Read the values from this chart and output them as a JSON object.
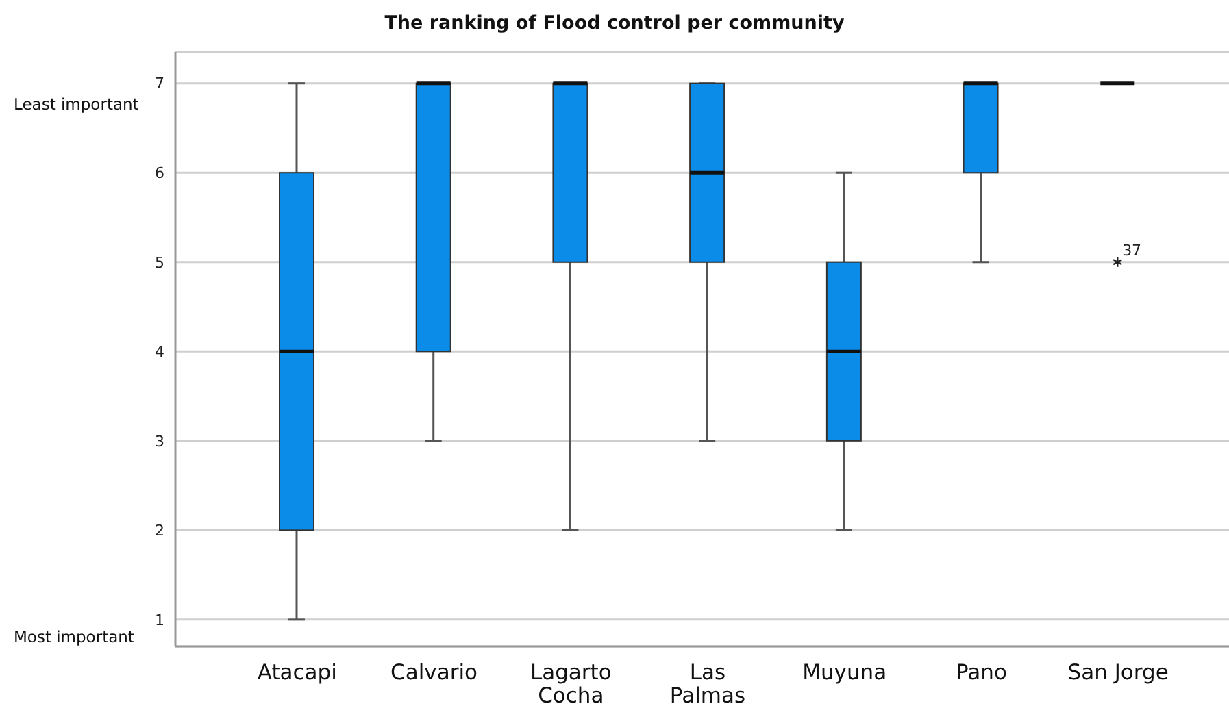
{
  "chart_data": {
    "type": "box",
    "title": "The ranking of Flood control per community",
    "categories": [
      "Atacapi",
      "Calvario",
      "Lagarto Cocha",
      "Las Palmas",
      "Muyuna",
      "Pano",
      "San Jorge"
    ],
    "boxes": [
      {
        "low": 1,
        "q1": 2,
        "median": 4,
        "q3": 6,
        "high": 7
      },
      {
        "low": 3,
        "q1": 4,
        "median": 7,
        "q3": 7,
        "high": 7
      },
      {
        "low": 2,
        "q1": 5,
        "median": 7,
        "q3": 7,
        "high": 7
      },
      {
        "low": 3,
        "q1": 5,
        "median": 6,
        "q3": 7,
        "high": 7
      },
      {
        "low": 2,
        "q1": 3,
        "median": 4,
        "q3": 5,
        "high": 6
      },
      {
        "low": 5,
        "q1": 6,
        "median": 7,
        "q3": 7,
        "high": 7
      },
      {
        "low": 7,
        "q1": 7,
        "median": 7,
        "q3": 7,
        "high": 7,
        "outliers": [
          5
        ]
      }
    ],
    "colors": [
      "#0b8ce8",
      "#0b8ce8",
      "#0b8ce8",
      "#0b8ce8",
      "#0b8ce8",
      "#0b8ce8",
      "#111111"
    ],
    "ylim": [
      0.7,
      7.35
    ],
    "yticks": [
      1,
      2,
      3,
      4,
      5,
      6,
      7
    ],
    "grid": "y",
    "annotations": [
      "Least important",
      "Most important",
      "37"
    ]
  }
}
